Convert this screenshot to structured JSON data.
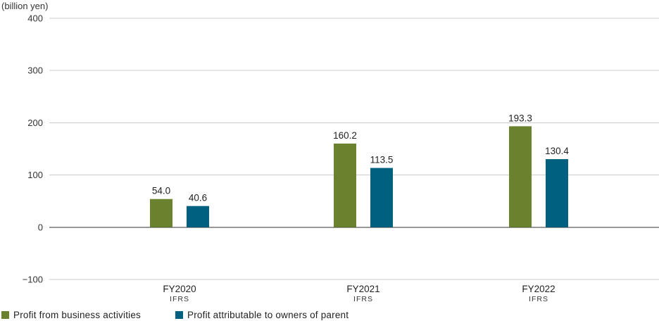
{
  "chart_data": {
    "type": "bar",
    "unit_label": "(billion yen)",
    "categories": [
      "FY2020",
      "FY2021",
      "FY2022"
    ],
    "category_sublabels": [
      "IFRS",
      "IFRS",
      "IFRS"
    ],
    "series": [
      {
        "name": "Profit from business activities",
        "values": [
          54.0,
          160.2,
          193.3
        ],
        "labels": [
          "54.0",
          "160.2",
          "193.3"
        ],
        "color": "#6a812e"
      },
      {
        "name": "Profit attributable to owners of parent",
        "values": [
          40.6,
          113.5,
          130.4
        ],
        "labels": [
          "40.6",
          "113.5",
          "130.4"
        ],
        "color": "#00607f"
      }
    ],
    "ylim": [
      -100,
      400
    ],
    "yticks": [
      -100,
      0,
      100,
      200,
      300,
      400
    ],
    "ytick_labels": [
      "−100",
      "0",
      "100",
      "200",
      "300",
      "400"
    ],
    "grid": true,
    "legend_position": "bottom-left"
  }
}
